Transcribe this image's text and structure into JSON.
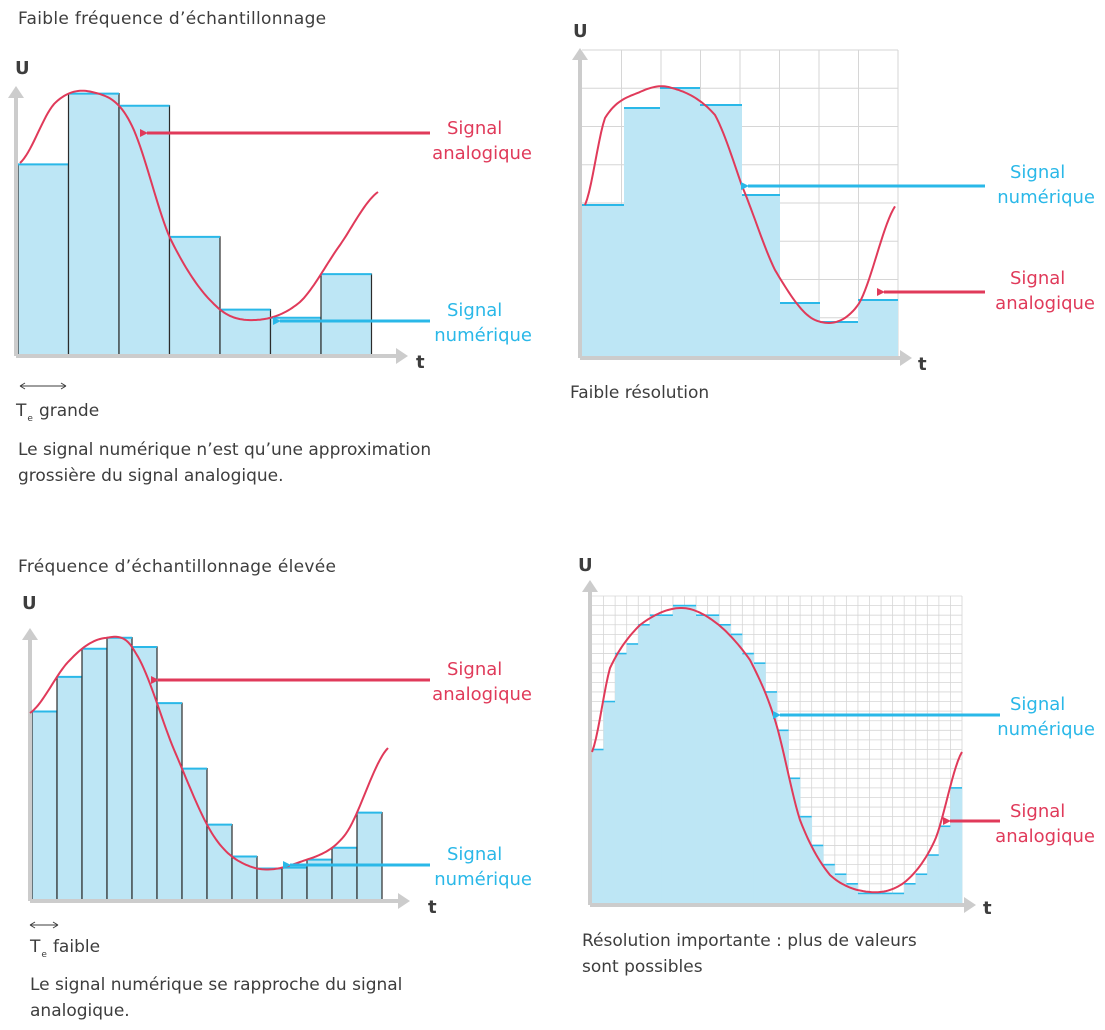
{
  "colors": {
    "analog": "#e03a5a",
    "digital": "#2ab8e8",
    "fill": "#bde6f5",
    "axis": "#cccccc",
    "grid": "#d6d6d6",
    "text": "#3d3d3d"
  },
  "panels": {
    "top_left": {
      "title": "Faible fréquence d’échantillonnage",
      "y_axis": "U",
      "x_axis": "t",
      "te_symbol": "T",
      "te_sub": "e",
      "te_text": "grande",
      "caption_line1": "Le signal numérique n’est qu’une approximation",
      "caption_line2": "grossière du signal analogique.",
      "analog_label": [
        "Signal",
        "analogique"
      ],
      "digital_label": [
        "Signal",
        "numérique"
      ],
      "sample_count": 7
    },
    "top_right": {
      "y_axis": "U",
      "x_axis": "t",
      "caption": "Faible résolution",
      "analog_label": [
        "Signal",
        "analogique"
      ],
      "digital_label": [
        "Signal",
        "numérique"
      ],
      "grid_lines": 8
    },
    "bottom_left": {
      "title": "Fréquence d’échantillonnage élevée",
      "y_axis": "U",
      "x_axis": "t",
      "te_symbol": "T",
      "te_sub": "e",
      "te_text": "faible",
      "caption_line1": "Le signal numérique se rapproche du signal",
      "caption_line2": "analogique.",
      "analog_label": [
        "Signal",
        "analogique"
      ],
      "digital_label": [
        "Signal",
        "numérique"
      ],
      "sample_count": 14
    },
    "bottom_right": {
      "y_axis": "U",
      "x_axis": "t",
      "caption_line1": "Résolution importante : plus de valeurs",
      "caption_line2": "sont possibles",
      "analog_label": [
        "Signal",
        "analogique"
      ],
      "digital_label": [
        "Signal",
        "numérique"
      ],
      "grid_lines": 32
    }
  }
}
